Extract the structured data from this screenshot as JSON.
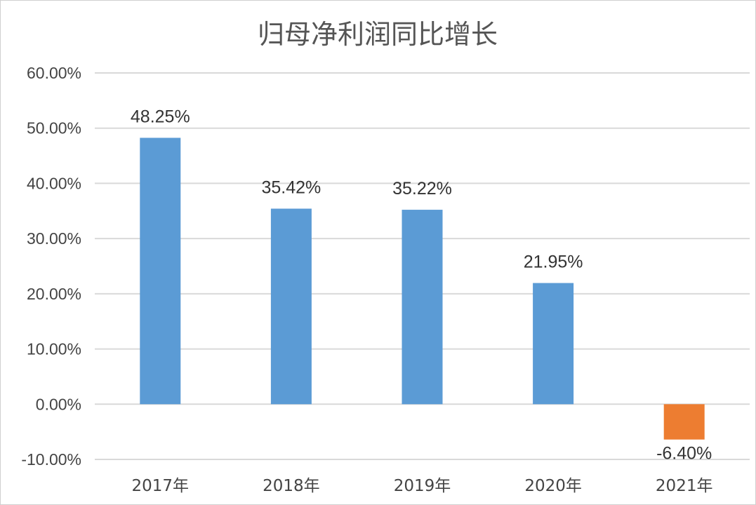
{
  "chart_data": {
    "type": "bar",
    "title": "归母净利润同比增长",
    "xlabel": "",
    "ylabel": "",
    "categories": [
      "2017年",
      "2018年",
      "2019年",
      "2020年",
      "2021年"
    ],
    "values": [
      48.25,
      35.42,
      35.22,
      21.95,
      -6.4
    ],
    "value_labels": [
      "48.25%",
      "35.42%",
      "35.22%",
      "21.95%",
      "-6.40%"
    ],
    "ylim": [
      -10,
      60
    ],
    "yticks": [
      60,
      50,
      40,
      30,
      20,
      10,
      0,
      -10
    ],
    "ytick_labels": [
      "60.00%",
      "50.00%",
      "40.00%",
      "30.00%",
      "20.00%",
      "10.00%",
      "0.00%",
      "-10.00%"
    ],
    "grid": true,
    "legend": "none",
    "colors": {
      "positive": "#5b9bd5",
      "negative": "#ed7d31"
    }
  }
}
